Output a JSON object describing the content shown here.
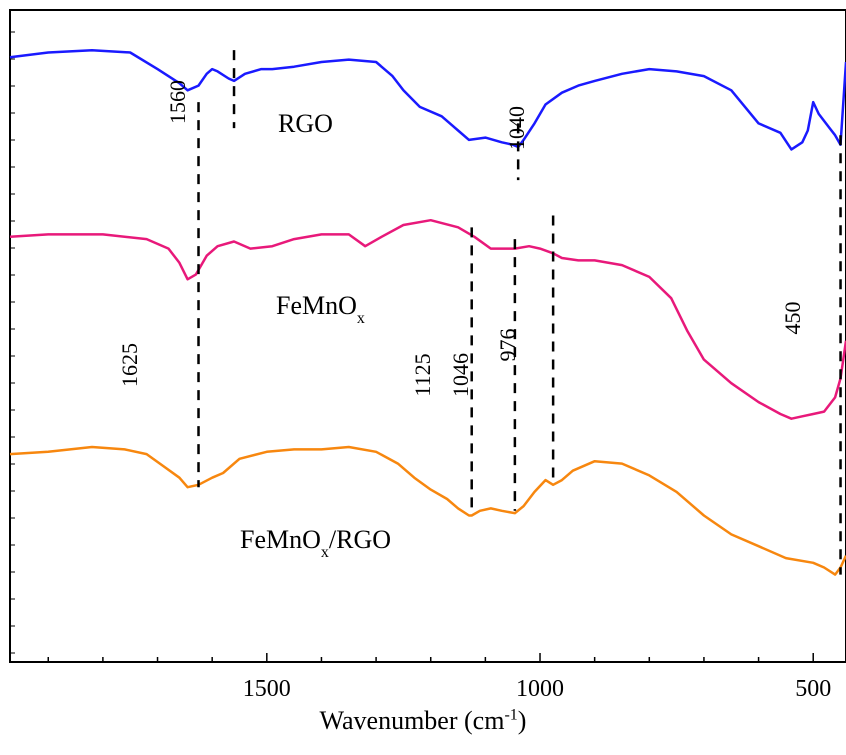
{
  "chart_data": {
    "type": "line",
    "xlabel": {
      "prefix": "Wavenumber (cm",
      "superscript": "-1",
      "suffix": ")"
    },
    "ylabel": "",
    "xlim": [
      1970,
      440
    ],
    "x_reversed": true,
    "x_ticks": [
      1500,
      1000,
      500
    ],
    "x_tick_labels": [
      "1500",
      "1000",
      "500"
    ],
    "y_ticks_unlabeled": true,
    "colors": {
      "RGO": "#1a1aff",
      "FeMnOx": "#e8197a",
      "FeMnOx/RGO": "#f7870f",
      "dashes": "#000000"
    },
    "series": [
      {
        "name": "RGO",
        "label_main": "RGO",
        "label_sub": "",
        "label_tail": "",
        "color": "#1a1aff",
        "x": [
          1970,
          1900,
          1820,
          1750,
          1700,
          1660,
          1645,
          1625,
          1610,
          1600,
          1590,
          1570,
          1560,
          1540,
          1510,
          1490,
          1450,
          1400,
          1350,
          1300,
          1270,
          1250,
          1220,
          1180,
          1150,
          1130,
          1100,
          1070,
          1050,
          1040,
          1030,
          1010,
          990,
          960,
          930,
          900,
          850,
          800,
          750,
          700,
          650,
          600,
          560,
          540,
          520,
          510,
          500,
          490,
          470,
          460,
          450,
          440
        ],
        "y": [
          3.8,
          3.9,
          3.95,
          3.9,
          3.55,
          3.25,
          3.1,
          3.2,
          3.45,
          3.55,
          3.5,
          3.35,
          3.3,
          3.45,
          3.55,
          3.55,
          3.6,
          3.7,
          3.75,
          3.7,
          3.4,
          3.1,
          2.75,
          2.55,
          2.25,
          2.05,
          2.1,
          2.0,
          1.95,
          1.9,
          2.05,
          2.4,
          2.8,
          3.05,
          3.2,
          3.3,
          3.45,
          3.55,
          3.5,
          3.4,
          3.1,
          2.4,
          2.2,
          1.85,
          2.0,
          2.25,
          2.85,
          2.6,
          2.3,
          2.15,
          1.95,
          3.7
        ]
      },
      {
        "name": "FeMnOx",
        "label_main": "FeMnO",
        "label_sub": "x",
        "label_tail": "",
        "color": "#e8197a",
        "x": [
          1970,
          1900,
          1800,
          1720,
          1680,
          1660,
          1645,
          1630,
          1610,
          1590,
          1560,
          1530,
          1490,
          1450,
          1400,
          1350,
          1320,
          1290,
          1250,
          1200,
          1150,
          1120,
          1090,
          1060,
          1046,
          1020,
          1000,
          976,
          960,
          930,
          900,
          850,
          800,
          760,
          730,
          700,
          650,
          600,
          560,
          540,
          520,
          500,
          480,
          460,
          450,
          440
        ],
        "y": [
          0,
          0.05,
          0.05,
          -0.05,
          -0.25,
          -0.55,
          -0.9,
          -0.8,
          -0.4,
          -0.2,
          -0.1,
          -0.25,
          -0.2,
          -0.05,
          0.05,
          0.05,
          -0.2,
          0.0,
          0.25,
          0.35,
          0.2,
          0.0,
          -0.25,
          -0.25,
          -0.25,
          -0.2,
          -0.25,
          -0.35,
          -0.45,
          -0.5,
          -0.5,
          -0.6,
          -0.85,
          -1.3,
          -2.0,
          -2.6,
          -3.1,
          -3.5,
          -3.75,
          -3.85,
          -3.8,
          -3.75,
          -3.7,
          -3.4,
          -3.0,
          -2.2
        ]
      },
      {
        "name": "FeMnOx/RGO",
        "label_main": "FeMnO",
        "label_sub": "x",
        "label_tail": "/RGO",
        "color": "#f7870f",
        "x": [
          1970,
          1900,
          1820,
          1760,
          1720,
          1690,
          1660,
          1645,
          1625,
          1600,
          1580,
          1550,
          1500,
          1450,
          1400,
          1350,
          1300,
          1260,
          1230,
          1200,
          1170,
          1150,
          1130,
          1125,
          1110,
          1090,
          1070,
          1046,
          1030,
          1010,
          990,
          976,
          960,
          940,
          900,
          850,
          800,
          750,
          700,
          650,
          600,
          550,
          500,
          480,
          460,
          450,
          440
        ],
        "y": [
          -4.6,
          -4.55,
          -4.45,
          -4.5,
          -4.6,
          -4.85,
          -5.1,
          -5.3,
          -5.25,
          -5.1,
          -5.0,
          -4.7,
          -4.55,
          -4.5,
          -4.5,
          -4.45,
          -4.55,
          -4.8,
          -5.1,
          -5.35,
          -5.55,
          -5.75,
          -5.9,
          -5.9,
          -5.8,
          -5.75,
          -5.8,
          -5.85,
          -5.7,
          -5.4,
          -5.15,
          -5.25,
          -5.15,
          -4.95,
          -4.75,
          -4.8,
          -5.05,
          -5.4,
          -5.9,
          -6.3,
          -6.55,
          -6.8,
          -6.9,
          -7.0,
          -7.15,
          -7.0,
          -6.75
        ]
      }
    ],
    "dashed_lines": [
      {
        "x": 1625,
        "label": "1625",
        "y_top": 2.85,
        "y_bottom": -5.3
      },
      {
        "x": 1560,
        "label": "1560",
        "y_top": 3.95,
        "y_bottom": 2.3
      },
      {
        "x": 1125,
        "label": "1125",
        "y_top": 0.2,
        "y_bottom": -5.8
      },
      {
        "x": 1046,
        "label": "1046",
        "y_top": -0.05,
        "y_bottom": -5.8
      },
      {
        "x": 1040,
        "label": "1040",
        "y_top": 2.4,
        "y_bottom": 1.2
      },
      {
        "x": 976,
        "label": "976",
        "y_top": 0.45,
        "y_bottom": -5.25
      },
      {
        "x": 450,
        "label": "450",
        "y_top": 2.15,
        "y_bottom": -7.15
      }
    ],
    "ylim": [
      -9.0,
      4.8
    ],
    "grid": false,
    "legend": "none"
  }
}
